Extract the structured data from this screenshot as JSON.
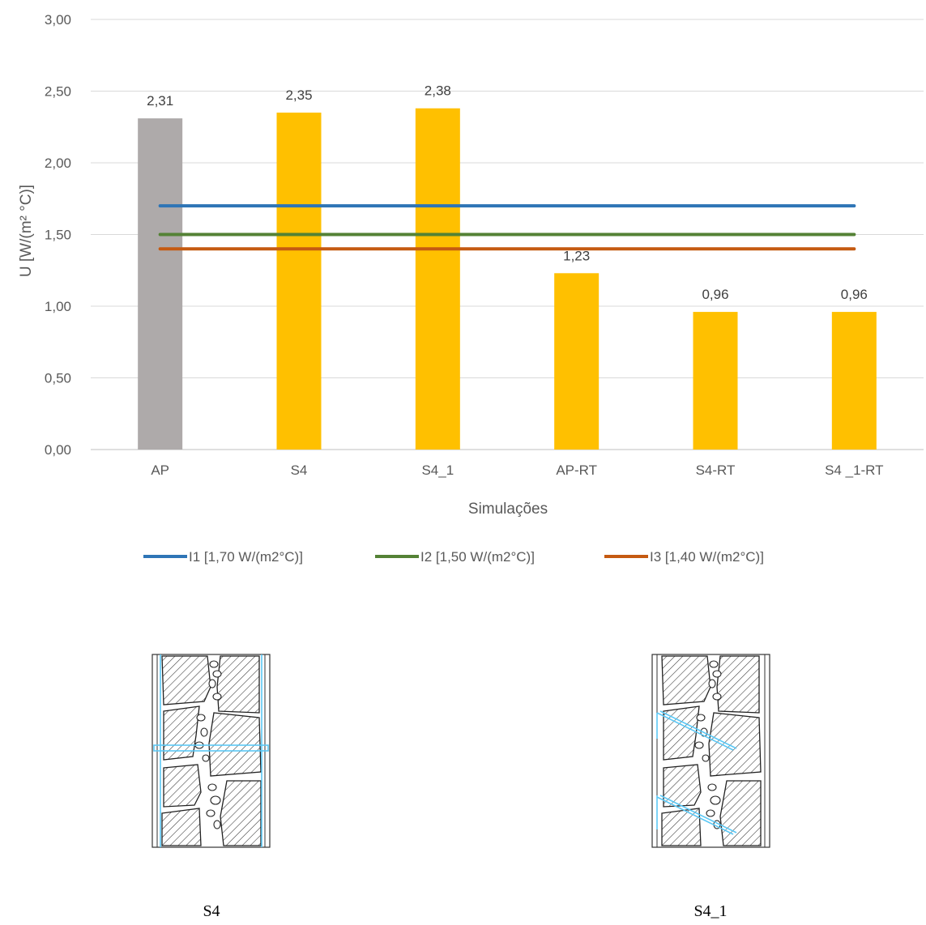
{
  "chart_data": {
    "type": "bar",
    "categories": [
      "AP",
      "S4",
      "S4_1",
      "AP-RT",
      "S4-RT",
      "S4 _1-RT"
    ],
    "values": [
      2.31,
      2.35,
      2.38,
      1.23,
      0.96,
      0.96
    ],
    "data_labels": [
      "2,31",
      "2,35",
      "2,38",
      "1,23",
      "0,96",
      "0,96"
    ],
    "bar_colors": [
      "#AEAAAA",
      "#FFC000",
      "#FFC000",
      "#FFC000",
      "#FFC000",
      "#FFC000"
    ],
    "xlabel": "Simulações",
    "ylabel": "U [W/(m² °C)]",
    "ylim": [
      0,
      3
    ],
    "yticks": [
      0,
      0.5,
      1,
      1.5,
      2,
      2.5,
      3
    ],
    "ytick_labels": [
      "0,00",
      "0,50",
      "1,00",
      "1,50",
      "2,00",
      "2,50",
      "3,00"
    ],
    "grid": true,
    "legend_position": "bottom",
    "reference_lines": [
      {
        "name": "I1 [1,70 W/(m2°C)]",
        "value": 1.7,
        "color": "#2E75B6"
      },
      {
        "name": "I2 [1,50 W/(m2°C)]",
        "value": 1.5,
        "color": "#548235"
      },
      {
        "name": "I3 [1,40 W/(m2°C)]",
        "value": 1.4,
        "color": "#C55A11"
      }
    ]
  },
  "figures": [
    {
      "caption": "S4",
      "anchor_color": "#5BC8F5"
    },
    {
      "caption": "S4_1",
      "anchor_color": "#5BC8F5"
    }
  ]
}
